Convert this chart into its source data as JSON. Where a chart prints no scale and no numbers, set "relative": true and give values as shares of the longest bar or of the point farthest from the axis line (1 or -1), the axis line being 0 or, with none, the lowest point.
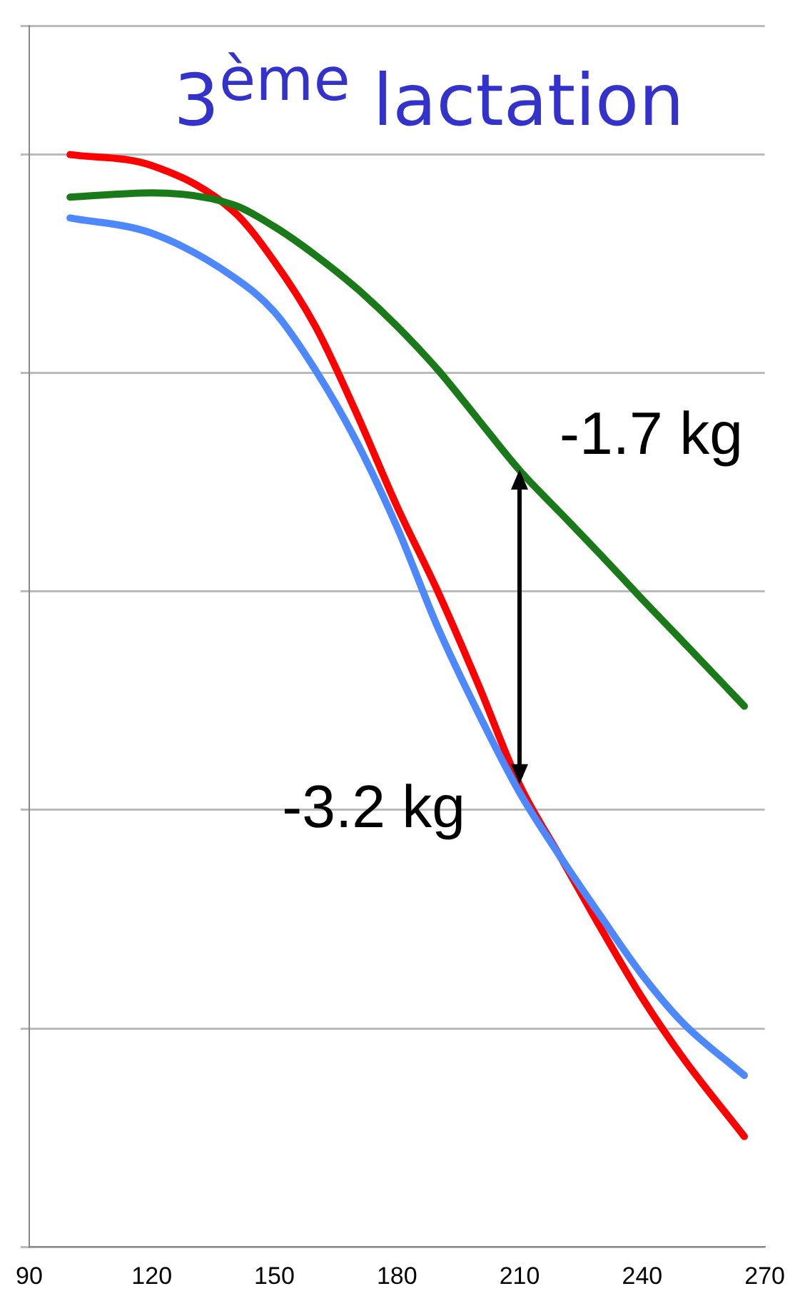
{
  "chart_data": {
    "type": "line",
    "title": "3$^{ème}$ lactation",
    "relative": true,
    "x": [
      100,
      120,
      140,
      150,
      160,
      170,
      180,
      190,
      200,
      210,
      220,
      230,
      240,
      250,
      265
    ],
    "xlim": [
      90,
      270
    ],
    "xticks": [
      90,
      120,
      150,
      180,
      210,
      240,
      270
    ],
    "series": [
      {
        "color": "#1a7a1a",
        "values": [
          0.961,
          0.965,
          0.954,
          0.934,
          0.908,
          0.878,
          0.843,
          0.803,
          0.757,
          0.711,
          0.672,
          0.633,
          0.593,
          0.554,
          0.495
        ]
      },
      {
        "color": "#4d88ff",
        "values": [
          0.942,
          0.928,
          0.888,
          0.856,
          0.803,
          0.738,
          0.659,
          0.567,
          0.488,
          0.416,
          0.357,
          0.302,
          0.249,
          0.205,
          0.157
        ]
      },
      {
        "color": "#ff0000",
        "values": [
          1,
          0.99,
          0.948,
          0.902,
          0.843,
          0.764,
          0.678,
          0.6,
          0.514,
          0.423,
          0.357,
          0.291,
          0.228,
          0.173,
          0.101
        ]
      }
    ],
    "annotations": [
      {
        "text": "-1.7 kg",
        "x": 210,
        "y": 0.711
      },
      {
        "text": "-3.2 kg",
        "x": 210,
        "y": 0.423
      }
    ],
    "grid": "y",
    "legend": false,
    "marker": "none",
    "line_style": "solid"
  }
}
